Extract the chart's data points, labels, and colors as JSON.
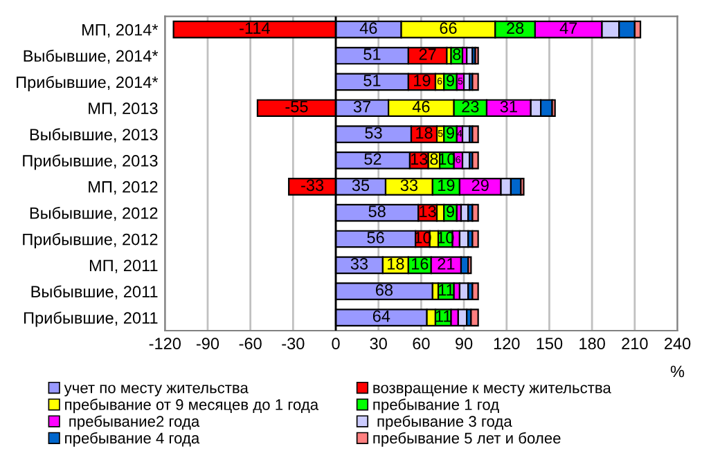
{
  "chart_data": {
    "type": "bar",
    "orientation": "horizontal",
    "stacked": true,
    "xlabel": "%",
    "categories": [
      "МП, 2014*",
      "Выбывшие, 2014*",
      "Прибывшие, 2014*",
      "МП, 2013",
      "Выбывшие, 2013",
      "Прибывшие, 2013",
      "МП, 2012",
      "Выбывшие, 2012",
      "Прибывшие, 2012",
      "МП, 2011",
      "Выбывшие, 2011",
      "Прибывшие, 2011"
    ],
    "series": [
      {
        "name": "учет по месту жительства",
        "color": "#9999ff",
        "values": [
          46,
          51,
          51,
          37,
          53,
          52,
          35,
          58,
          56,
          33,
          68,
          64
        ],
        "value_labels": [
          "46",
          "51",
          "51",
          "37",
          "53",
          "52",
          "35",
          "58",
          "56",
          "33",
          "68",
          "64"
        ]
      },
      {
        "name": "возвращение к месту жительства",
        "color": "#ff0000",
        "values": [
          -114,
          27,
          19,
          -55,
          18,
          13,
          -33,
          13,
          10,
          null,
          null,
          null
        ],
        "value_labels": [
          "-114",
          "27",
          "19",
          "-55",
          "18",
          "13",
          "-33",
          "13",
          "10",
          null,
          null,
          null
        ]
      },
      {
        "name": "пребывание от 9 месяцев до 1 года",
        "color": "#ffff00",
        "values": [
          66,
          3,
          6,
          46,
          5,
          8,
          33,
          5,
          6,
          18,
          4,
          6
        ],
        "value_labels": [
          "66",
          null,
          "6",
          "46",
          "5",
          "8",
          "33",
          null,
          null,
          "18",
          null,
          null
        ]
      },
      {
        "name": "пребывание 1 год",
        "color": "#00ff00",
        "values": [
          28,
          8,
          9,
          23,
          9,
          10,
          19,
          9,
          10,
          16,
          11,
          11
        ],
        "value_labels": [
          "28",
          "8",
          "9",
          "23",
          "9",
          "10",
          "19",
          "9",
          "10",
          "16",
          "11",
          "11"
        ]
      },
      {
        "name": " пребывание2 года",
        "color": "#ff00ff",
        "values": [
          47,
          3,
          5,
          31,
          4,
          6,
          29,
          3,
          5,
          21,
          4,
          5
        ],
        "value_labels": [
          "47",
          null,
          "5",
          "31",
          "4",
          "6",
          "29",
          null,
          null,
          "21",
          null,
          null
        ]
      },
      {
        "name": " пребывание 3 года",
        "color": "#ccccff",
        "values": [
          12,
          4,
          4,
          7,
          5,
          5,
          7,
          5,
          6,
          null,
          6,
          6
        ]
      },
      {
        "name": "пребывание 4 года",
        "color": "#0066cc",
        "values": [
          11,
          2,
          2,
          8,
          2,
          2,
          7,
          3,
          3,
          5,
          3,
          3
        ]
      },
      {
        "name": "пребывание 5 лет и более",
        "color": "#ff8080",
        "values": [
          4,
          2,
          4,
          2,
          4,
          4,
          2,
          4,
          4,
          2,
          4,
          5
        ]
      }
    ],
    "xlim": [
      -120,
      240
    ],
    "xticks": [
      -120,
      -90,
      -60,
      -30,
      0,
      30,
      60,
      90,
      120,
      150,
      180,
      210,
      240
    ],
    "grid": "x",
    "legend": "bottom"
  }
}
